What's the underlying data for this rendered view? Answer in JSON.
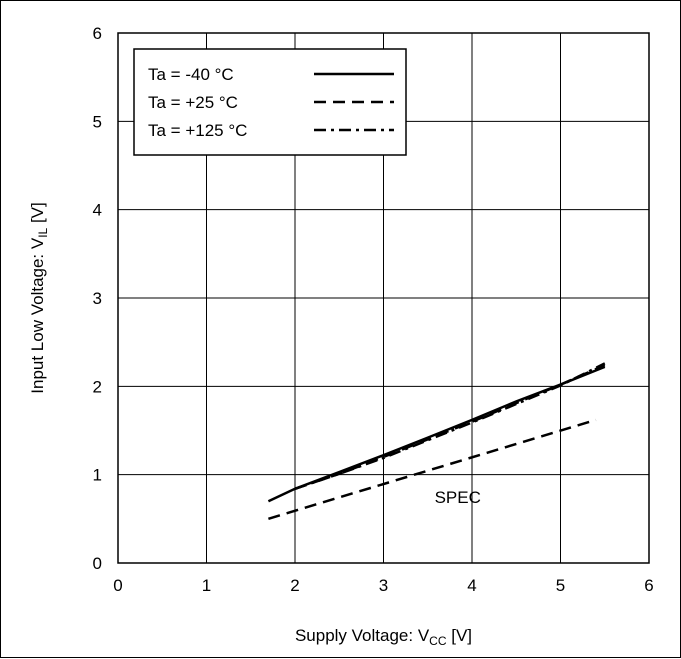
{
  "chart_data": {
    "type": "line",
    "title": "",
    "xlabel": {
      "main": "Supply Voltage: V",
      "sub": "CC",
      "unit": " [V]"
    },
    "ylabel": {
      "main": "Input Low Voltage: V",
      "sub": "IL",
      "unit": " [V]"
    },
    "xlim": [
      0,
      6
    ],
    "ylim": [
      0,
      6
    ],
    "xticks": [
      "0",
      "1",
      "2",
      "3",
      "4",
      "5",
      "6"
    ],
    "yticks": [
      "0",
      "1",
      "2",
      "3",
      "4",
      "5",
      "6"
    ],
    "grid": true,
    "legend_position": "top-left",
    "series": [
      {
        "name": "Ta = -40 °C",
        "dash": "solid",
        "x": [
          1.7,
          2.0,
          2.5,
          3.0,
          3.5,
          4.0,
          4.5,
          5.0,
          5.5
        ],
        "y": [
          0.7,
          0.84,
          1.03,
          1.22,
          1.42,
          1.62,
          1.83,
          2.02,
          2.22
        ]
      },
      {
        "name": "Ta = +25 °C",
        "dash": "dashed",
        "x": [
          2.0,
          2.5,
          3.0,
          3.5,
          4.0,
          4.5,
          5.0,
          5.5
        ],
        "y": [
          0.84,
          1.01,
          1.2,
          1.4,
          1.6,
          1.81,
          2.02,
          2.24
        ]
      },
      {
        "name": "Ta = +125 °C",
        "dash": "dashdot",
        "x": [
          2.0,
          2.5,
          3.0,
          3.5,
          4.0,
          4.5,
          5.0,
          5.5
        ],
        "y": [
          0.84,
          1.01,
          1.19,
          1.39,
          1.59,
          1.8,
          2.01,
          2.26
        ]
      },
      {
        "name": "",
        "dash": "dashed",
        "x": [
          1.7,
          5.4
        ],
        "y": [
          0.5,
          1.62
        ]
      }
    ],
    "annotations": [
      {
        "text": "SPEC",
        "x": 3.6,
        "y": 0.75
      }
    ]
  }
}
